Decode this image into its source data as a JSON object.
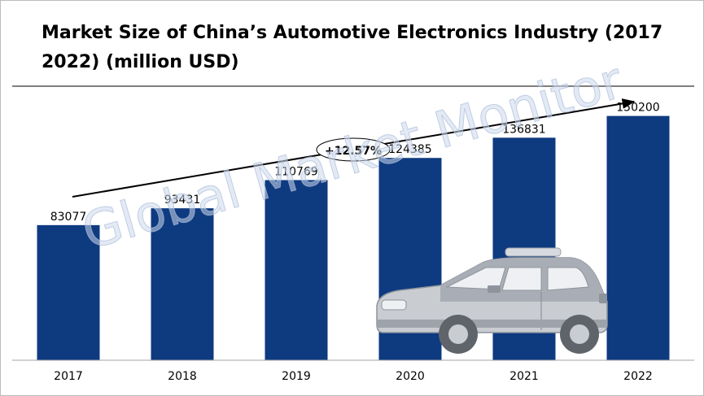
{
  "title": "Market Size of China’s Automotive Electronics Industry (2017 2022) (million USD)",
  "watermark": "Global Market Monitor",
  "growth_label": "+12.57%",
  "colors": {
    "bar": "#0e3a80",
    "arrow": "#000000",
    "axis": "#a6a6a6"
  },
  "chart_data": {
    "type": "bar",
    "title": "Market Size of China’s Automotive Electronics Industry (2017 2022) (million USD)",
    "categories": [
      "2017",
      "2018",
      "2019",
      "2020",
      "2021",
      "2022"
    ],
    "values": [
      83077,
      93431,
      110769,
      124385,
      136831,
      150200
    ],
    "data_labels": [
      "83077",
      "93431",
      "110769",
      "124385",
      "136831",
      "150200"
    ],
    "annotations": [
      "+12.57%"
    ],
    "xlabel": "",
    "ylabel": "",
    "ylim": [
      0,
      160000
    ],
    "grid": false,
    "legend": "none"
  }
}
